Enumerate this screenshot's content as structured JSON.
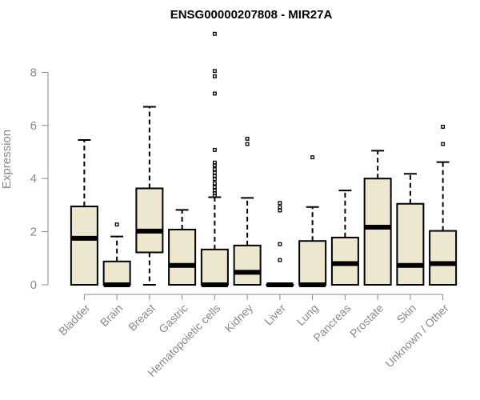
{
  "chart_data": {
    "type": "box",
    "title": "ENSG00000207808 - MIR27A",
    "xlabel": "",
    "ylabel": "Expression",
    "ylim": [
      0,
      9.8
    ],
    "yticks": [
      0,
      2,
      4,
      6,
      8
    ],
    "grid": false,
    "legend": "none",
    "colors": {
      "box_fill": "#ede7cf",
      "stroke": "#000000",
      "axis": "#888888",
      "outlier": "#000000"
    },
    "categories": [
      "Bladder",
      "Brain",
      "Breast",
      "Gastric",
      "Hematopoietic cells",
      "Kidney",
      "Liver",
      "Lung",
      "Pancreas",
      "Prostate",
      "Skin",
      "Unknown / Other"
    ],
    "series": [
      {
        "category": "Bladder",
        "whisker_low": 0,
        "q1": 0,
        "median": 1.75,
        "q3": 2.95,
        "whisker_high": 5.45,
        "outliers": []
      },
      {
        "category": "Brain",
        "whisker_low": 0,
        "q1": 0,
        "median": 0,
        "q3": 0.88,
        "whisker_high": 1.82,
        "outliers": [
          2.27
        ]
      },
      {
        "category": "Breast",
        "whisker_low": 0,
        "q1": 1.22,
        "median": 2.02,
        "q3": 3.63,
        "whisker_high": 6.7,
        "outliers": []
      },
      {
        "category": "Gastric",
        "whisker_low": 0,
        "q1": 0,
        "median": 0.73,
        "q3": 2.08,
        "whisker_high": 2.82,
        "outliers": []
      },
      {
        "category": "Hematopoietic cells",
        "whisker_low": 0,
        "q1": 0,
        "median": 0,
        "q3": 1.33,
        "whisker_high": 3.3,
        "outliers": [
          3.35,
          3.45,
          3.55,
          3.68,
          3.82,
          3.98,
          4.1,
          4.22,
          4.35,
          4.5,
          4.6,
          5.08,
          7.2,
          7.85,
          8.05,
          9.45
        ]
      },
      {
        "category": "Kidney",
        "whisker_low": 0,
        "q1": 0,
        "median": 0.47,
        "q3": 1.48,
        "whisker_high": 3.27,
        "outliers": [
          5.3,
          5.5
        ]
      },
      {
        "category": "Liver",
        "whisker_low": 0,
        "q1": 0,
        "median": 0,
        "q3": 0,
        "whisker_high": 0,
        "outliers": [
          0.93,
          1.53,
          2.8,
          2.92,
          3.08
        ]
      },
      {
        "category": "Lung",
        "whisker_low": 0,
        "q1": 0,
        "median": 0,
        "q3": 1.65,
        "whisker_high": 2.93,
        "outliers": [
          4.8
        ]
      },
      {
        "category": "Pancreas",
        "whisker_low": 0,
        "q1": 0,
        "median": 0.8,
        "q3": 1.78,
        "whisker_high": 3.55,
        "outliers": []
      },
      {
        "category": "Prostate",
        "whisker_low": 0,
        "q1": 0,
        "median": 2.17,
        "q3": 4.0,
        "whisker_high": 5.05,
        "outliers": []
      },
      {
        "category": "Skin",
        "whisker_low": 0,
        "q1": 0,
        "median": 0.73,
        "q3": 3.05,
        "whisker_high": 4.18,
        "outliers": []
      },
      {
        "category": "Unknown / Other",
        "whisker_low": 0,
        "q1": 0,
        "median": 0.8,
        "q3": 2.03,
        "whisker_high": 4.62,
        "outliers": [
          5.3,
          5.95
        ]
      }
    ]
  }
}
